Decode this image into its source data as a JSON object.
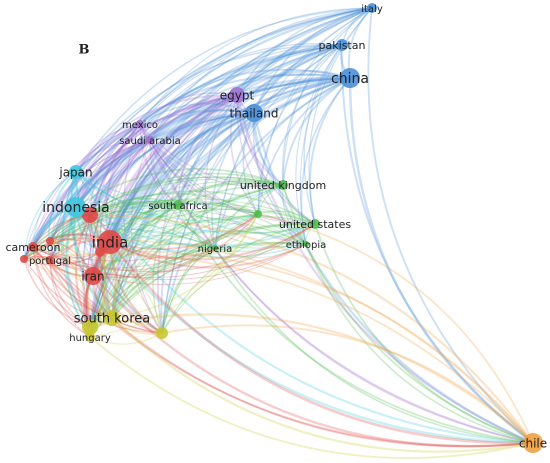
{
  "panel_label": "B",
  "nodes": [
    {
      "label": "italy"
    },
    {
      "label": "pakistan"
    },
    {
      "label": "china"
    },
    {
      "label": "egypt"
    },
    {
      "label": "thailand"
    },
    {
      "label": "mexico"
    },
    {
      "label": "saudi arabia"
    },
    {
      "label": "japan"
    },
    {
      "label": "united kingdom"
    },
    {
      "label": "indonesia"
    },
    {
      "label": "south africa"
    },
    {
      "label": "india"
    },
    {
      "label": "cameroon"
    },
    {
      "label": "portugal"
    },
    {
      "label": "nigeria"
    },
    {
      "label": "united states"
    },
    {
      "label": "ethiopia"
    },
    {
      "label": "iran"
    },
    {
      "label": "south korea"
    },
    {
      "label": "hungary"
    },
    {
      "label": "chile"
    }
  ]
}
